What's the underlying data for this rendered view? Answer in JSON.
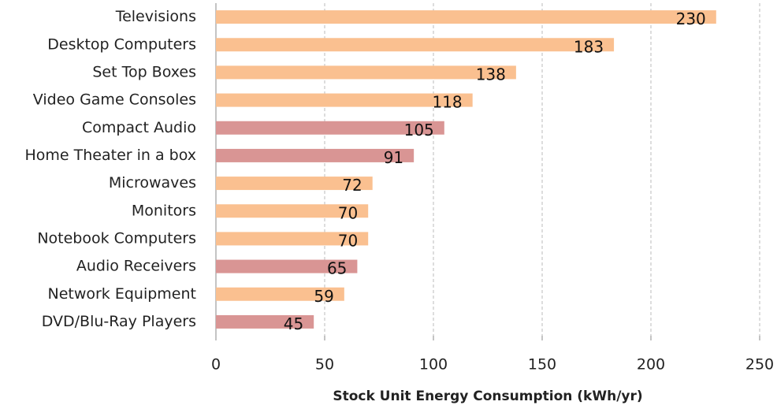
{
  "chart_data": {
    "type": "barh",
    "x_label": "Stock Unit Energy Consumption  (kWh/yr)",
    "categories": [
      "Televisions",
      "Desktop Computers",
      "Set Top Boxes",
      "Video Game Consoles",
      "Compact Audio",
      "Home Theater in a box",
      "Microwaves",
      "Monitors",
      "Notebook Computers",
      "Audio Receivers",
      "Network Equipment",
      "DVD/Blu-Ray Players"
    ],
    "values": [
      230,
      183,
      138,
      118,
      105,
      91,
      72,
      70,
      70,
      65,
      59,
      45
    ],
    "colors": [
      "#fac090",
      "#fac090",
      "#fac090",
      "#fac090",
      "#d99594",
      "#d99594",
      "#fac090",
      "#fac090",
      "#fac090",
      "#d99594",
      "#fac090",
      "#d99594"
    ],
    "xlim": [
      0,
      250
    ],
    "xticks": [
      0,
      50,
      100,
      150,
      200,
      250
    ],
    "grid": true
  }
}
